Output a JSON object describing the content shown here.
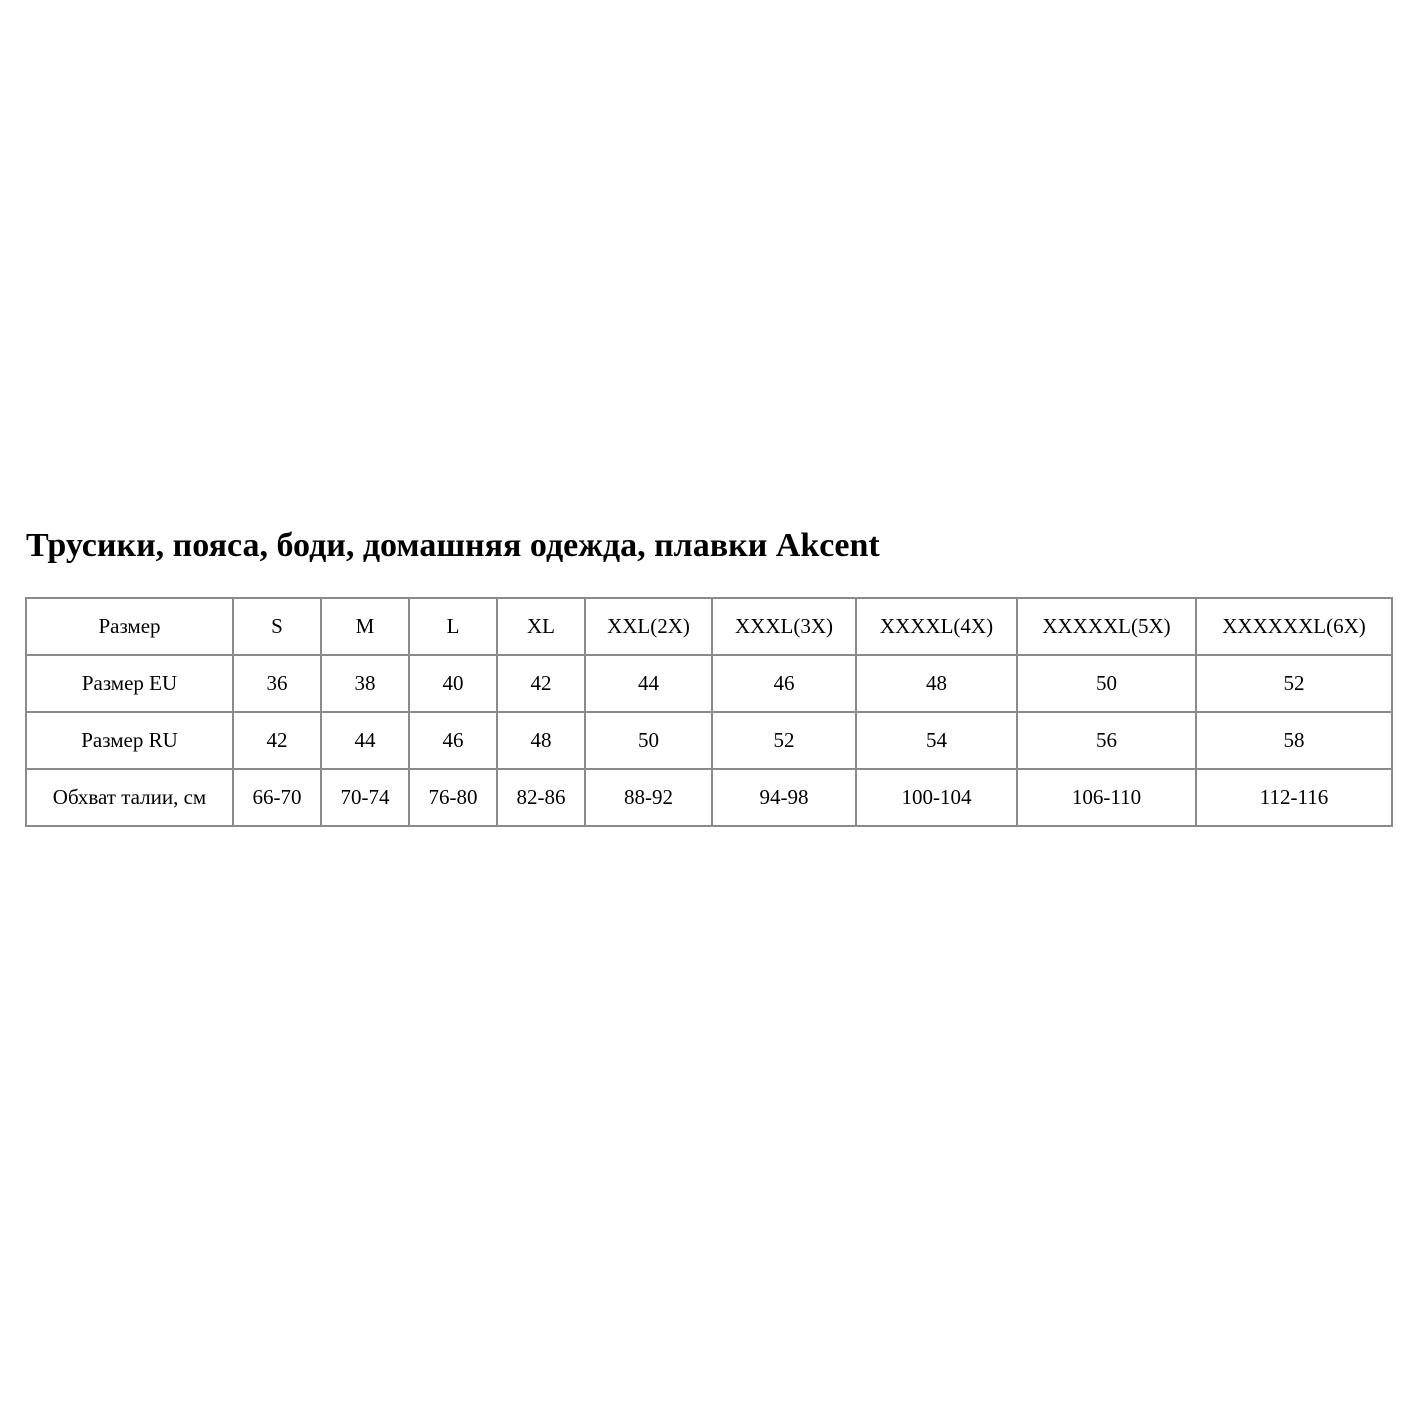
{
  "title": "Трусики, пояса, боди, домашняя одежда, плавки Akcent",
  "table": {
    "rows": [
      [
        "Размер",
        "S",
        "M",
        "L",
        "XL",
        "XXL(2X)",
        "XXXL(3X)",
        "XXXXL(4X)",
        "XXXXXL(5X)",
        "XXXXXXL(6X)"
      ],
      [
        "Размер EU",
        "36",
        "38",
        "40",
        "42",
        "44",
        "46",
        "48",
        "50",
        "52"
      ],
      [
        "Размер RU",
        "42",
        "44",
        "46",
        "48",
        "50",
        "52",
        "54",
        "56",
        "58"
      ],
      [
        "Обхват талии, см",
        "66-70",
        "70-74",
        "76-80",
        "82-86",
        "88-92",
        "94-98",
        "100-104",
        "106-110",
        "112-116"
      ]
    ]
  },
  "colors": {
    "border": "#8a8a8a",
    "text": "#000000",
    "background": "#ffffff"
  }
}
